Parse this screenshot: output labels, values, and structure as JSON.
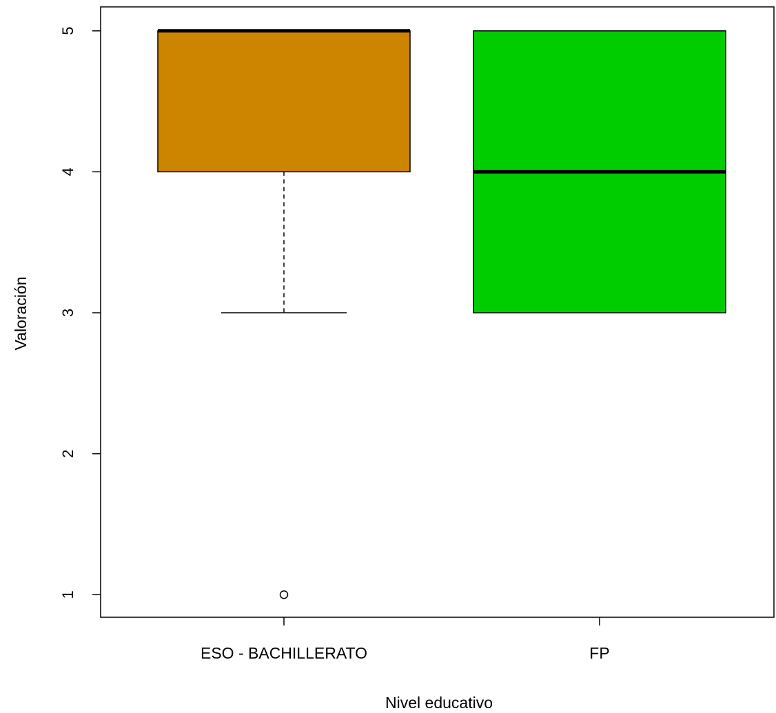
{
  "chart_data": {
    "type": "boxplot",
    "xlabel": "Nivel educativo",
    "ylabel": "Valoración",
    "ylim": [
      0.84,
      5.17
    ],
    "yticks": [
      1,
      2,
      3,
      4,
      5
    ],
    "grid": false,
    "boxes": [
      {
        "category": "ESO - BACHILLERATO",
        "color": "#CD8500",
        "whisker_low": 3,
        "q1": 4,
        "median": 5,
        "q3": 5,
        "whisker_high": 5,
        "outliers": [
          1
        ]
      },
      {
        "category": "FP",
        "color": "#00CD00",
        "whisker_low": 3,
        "q1": 3,
        "median": 4,
        "q3": 5,
        "whisker_high": 5,
        "outliers": []
      }
    ]
  }
}
